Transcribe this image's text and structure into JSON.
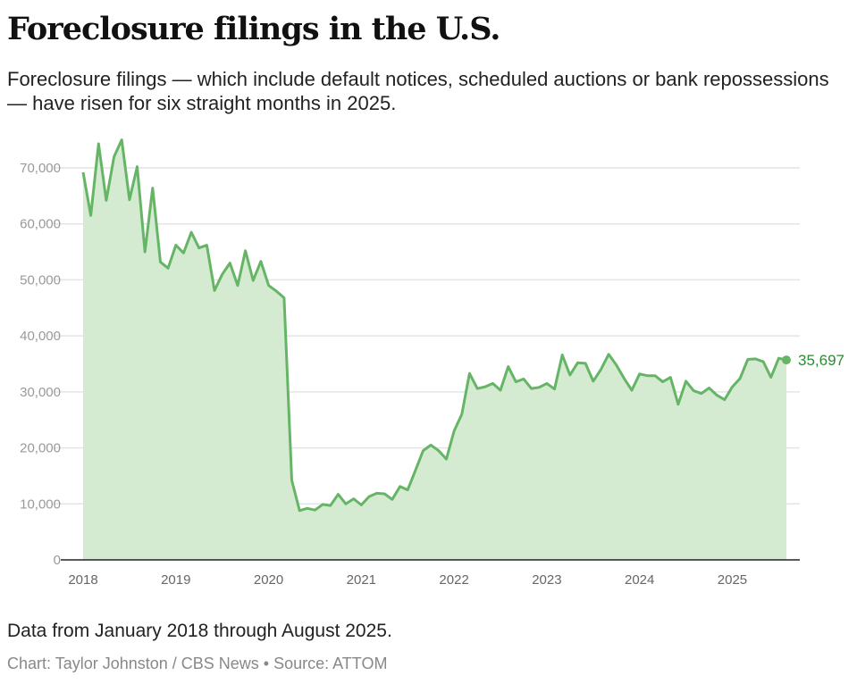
{
  "title": "Foreclosure filings in the U.S.",
  "subtitle": "Foreclosure filings — which include default notices, scheduled auctions or bank repossessions — have risen for six straight months in 2025.",
  "note": "Data from January 2018 through August 2025.",
  "source": "Chart: Taylor Johnston / CBS News • Source: ATTOM",
  "colors": {
    "line": "#66b566",
    "area": "#d4ebd2",
    "label": "#2e8a36"
  },
  "chart_data": {
    "type": "area",
    "title": "Foreclosure filings in the U.S.",
    "xlabel": "",
    "ylabel": "",
    "x_start": "2018-01",
    "x_end": "2025-08",
    "frequency": "monthly",
    "ylim": [
      0,
      70000
    ],
    "yticks": [
      0,
      10000,
      20000,
      30000,
      40000,
      50000,
      60000,
      70000
    ],
    "ytick_labels": [
      "0",
      "10,000",
      "20,000",
      "30,000",
      "40,000",
      "50,000",
      "60,000",
      "70,000"
    ],
    "xtick_labels": [
      "2018",
      "2019",
      "2020",
      "2021",
      "2022",
      "2023",
      "2024",
      "2025"
    ],
    "grid": true,
    "end_label": "35,697",
    "values": [
      69200,
      61500,
      74300,
      64200,
      72000,
      75000,
      64300,
      70200,
      55000,
      66400,
      53200,
      52100,
      56200,
      54800,
      58500,
      55700,
      56200,
      48100,
      51000,
      53000,
      49000,
      55200,
      49900,
      53300,
      49000,
      48000,
      46800,
      14200,
      8800,
      9200,
      8900,
      9900,
      9700,
      11700,
      10000,
      10900,
      9800,
      11300,
      11900,
      11800,
      10800,
      13100,
      12500,
      16000,
      19500,
      20500,
      19500,
      18000,
      23000,
      26000,
      33300,
      30600,
      30900,
      31500,
      30300,
      34500,
      31800,
      32300,
      30600,
      30800,
      31500,
      30500,
      36600,
      33000,
      35200,
      35100,
      31900,
      34000,
      36700,
      34800,
      32400,
      30300,
      33200,
      32900,
      32900,
      31800,
      32600,
      27800,
      31900,
      30200,
      29700,
      30700,
      29400,
      28600,
      30900,
      32400,
      35800,
      35900,
      35400,
      32600,
      36000,
      35697
    ]
  }
}
